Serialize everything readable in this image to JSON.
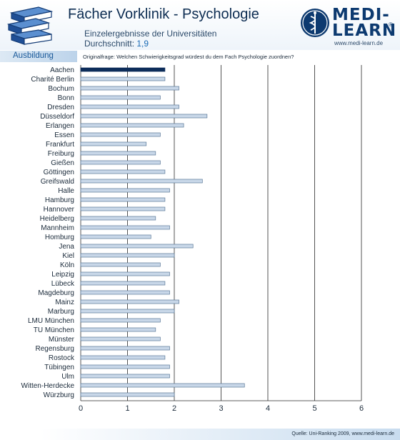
{
  "header": {
    "title": "Fächer Vorklinik - Psychologie",
    "subtitle": "Einzelergebnisse der Universitäten",
    "average_label": "Durchschnitt:",
    "average_value": "1,9"
  },
  "logo": {
    "line1": "MEDI-",
    "line2": "LEARN",
    "registered": "®",
    "url": "www.medi-learn.de"
  },
  "section": "Ausbildung",
  "question": "Originalfrage: Welchen Schwierigkeitsgrad würdest du dem Fach Psychologie zuordnen?",
  "source": "Quelle: Uni-Ranking 2009, www.medi-learn.de",
  "colors": {
    "bar_highlight": "#0d2d5a",
    "bar_default": "#c8d7e8",
    "bar_border": "#5a7898",
    "grid": "#2a2a2a"
  },
  "chart_data": {
    "type": "bar",
    "orientation": "horizontal",
    "categories": [
      "Aachen",
      "Charité Berlin",
      "Bochum",
      "Bonn",
      "Dresden",
      "Düsseldorf",
      "Erlangen",
      "Essen",
      "Frankfurt",
      "Freiburg",
      "Gießen",
      "Göttingen",
      "Greifswald",
      "Halle",
      "Hamburg",
      "Hannover",
      "Heidelberg",
      "Mannheim",
      "Homburg",
      "Jena",
      "Kiel",
      "Köln",
      "Leipzig",
      "Lübeck",
      "Magdeburg",
      "Mainz",
      "Marburg",
      "LMU München",
      "TU München",
      "Münster",
      "Regensburg",
      "Rostock",
      "Tübingen",
      "Ulm",
      "Witten-Herdecke",
      "Würzburg"
    ],
    "values": [
      1.8,
      1.8,
      2.1,
      1.7,
      2.1,
      2.7,
      2.2,
      1.7,
      1.4,
      1.6,
      1.7,
      1.8,
      2.6,
      1.9,
      1.8,
      1.8,
      1.6,
      1.9,
      1.5,
      2.4,
      2.0,
      1.7,
      1.9,
      1.8,
      1.9,
      2.1,
      2.0,
      1.7,
      1.6,
      1.7,
      1.9,
      1.8,
      1.9,
      1.9,
      3.5,
      2.0
    ],
    "highlight_index": 0,
    "xlim": [
      0,
      6
    ],
    "xticks": [
      0,
      1,
      2,
      3,
      4,
      5,
      6
    ],
    "grid": true
  }
}
